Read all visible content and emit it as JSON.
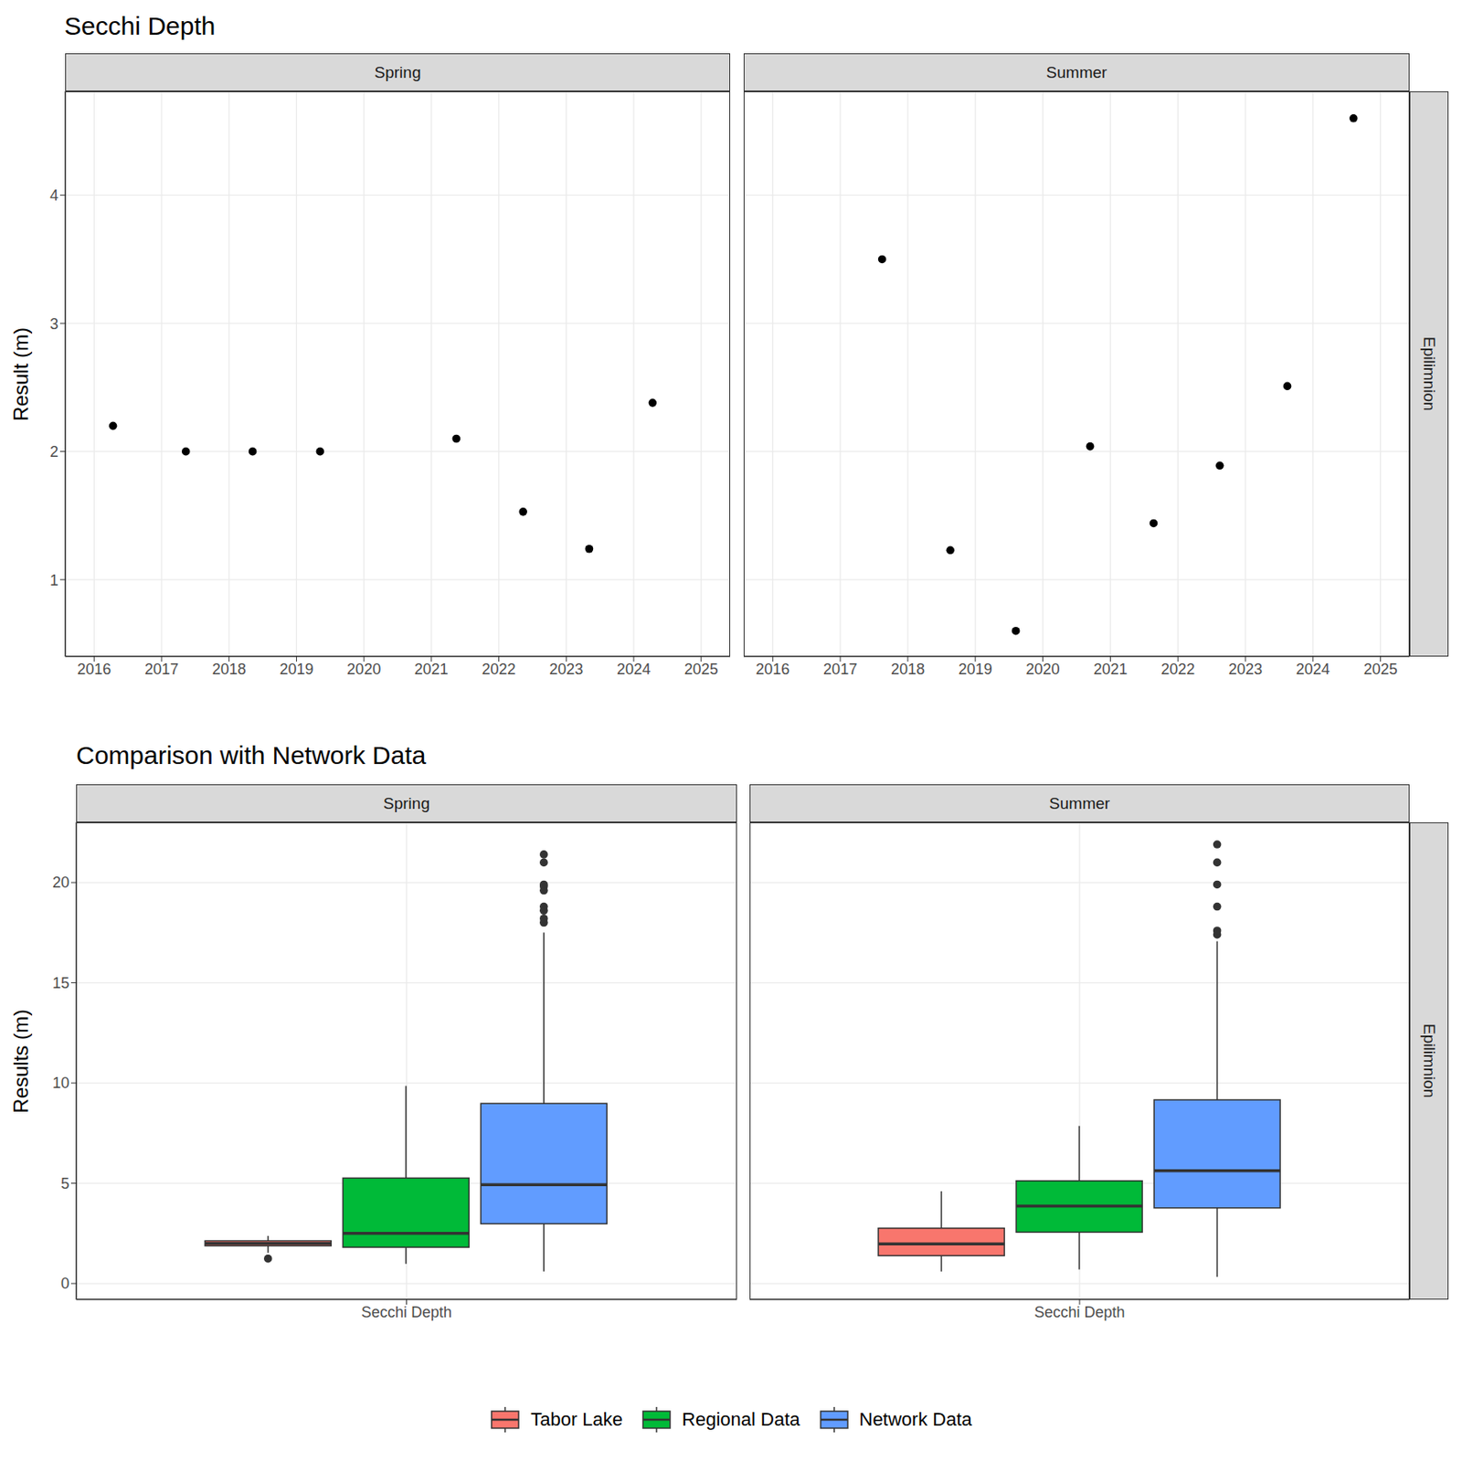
{
  "chart_data": [
    {
      "type": "scatter",
      "title": "Secchi Depth",
      "y_label": "Result (m)",
      "row_label": "Epilimnion",
      "xlim": [
        2015.57,
        2025.43
      ],
      "xticks": [
        2016,
        2017,
        2018,
        2019,
        2020,
        2021,
        2022,
        2023,
        2024,
        2025
      ],
      "ylim": [
        0.4,
        4.81
      ],
      "yticks": [
        1,
        2,
        3,
        4
      ],
      "grid": true,
      "color": "#000000",
      "panels": [
        {
          "name": "Spring",
          "x": [
            2016.28,
            2017.36,
            2018.35,
            2019.35,
            2021.37,
            2022.36,
            2023.34,
            2024.28
          ],
          "values": [
            2.2,
            2.0,
            2.0,
            2.0,
            2.1,
            1.53,
            1.24,
            2.38
          ]
        },
        {
          "name": "Summer",
          "x": [
            2017.62,
            2018.63,
            2019.6,
            2020.7,
            2021.64,
            2022.62,
            2023.62,
            2024.6
          ],
          "values": [
            3.5,
            1.23,
            0.6,
            2.04,
            1.44,
            1.89,
            2.51,
            4.6
          ]
        }
      ]
    },
    {
      "type": "boxplot",
      "title": "Comparison with Network Data",
      "y_label": "Results (m)",
      "row_label": "Epilimnion",
      "categories": [
        "Secchi Depth"
      ],
      "ylim": [
        -0.8,
        23
      ],
      "yticks": [
        0,
        5,
        10,
        15,
        20
      ],
      "grid": true,
      "legend": "bottom",
      "series": [
        {
          "name": "Tabor Lake",
          "color": "#F8766D"
        },
        {
          "name": "Regional Data",
          "color": "#00BA38"
        },
        {
          "name": "Network Data",
          "color": "#619CFF"
        }
      ],
      "panels": [
        {
          "name": "Spring",
          "boxes": [
            {
              "min": 1.53,
              "q1": 1.88,
              "median": 2.0,
              "q3": 2.13,
              "max": 2.38,
              "outliers": [
                1.24
              ]
            },
            {
              "min": 0.98,
              "q1": 1.81,
              "median": 2.5,
              "q3": 5.26,
              "max": 9.86,
              "outliers": []
            },
            {
              "min": 0.6,
              "q1": 2.98,
              "median": 4.93,
              "q3": 8.98,
              "max": 17.5,
              "outliers": [
                18.0,
                18.2,
                18.6,
                18.8,
                19.6,
                19.8,
                19.9,
                21.0,
                21.4
              ]
            }
          ]
        },
        {
          "name": "Summer",
          "boxes": [
            {
              "min": 0.6,
              "q1": 1.39,
              "median": 1.97,
              "q3": 2.76,
              "max": 4.6,
              "outliers": []
            },
            {
              "min": 0.7,
              "q1": 2.56,
              "median": 3.86,
              "q3": 5.12,
              "max": 7.86,
              "outliers": []
            },
            {
              "min": 0.33,
              "q1": 3.77,
              "median": 5.63,
              "q3": 9.16,
              "max": 17.07,
              "outliers": [
                17.4,
                17.6,
                18.8,
                19.9,
                21.0,
                21.9
              ]
            }
          ]
        }
      ]
    }
  ]
}
